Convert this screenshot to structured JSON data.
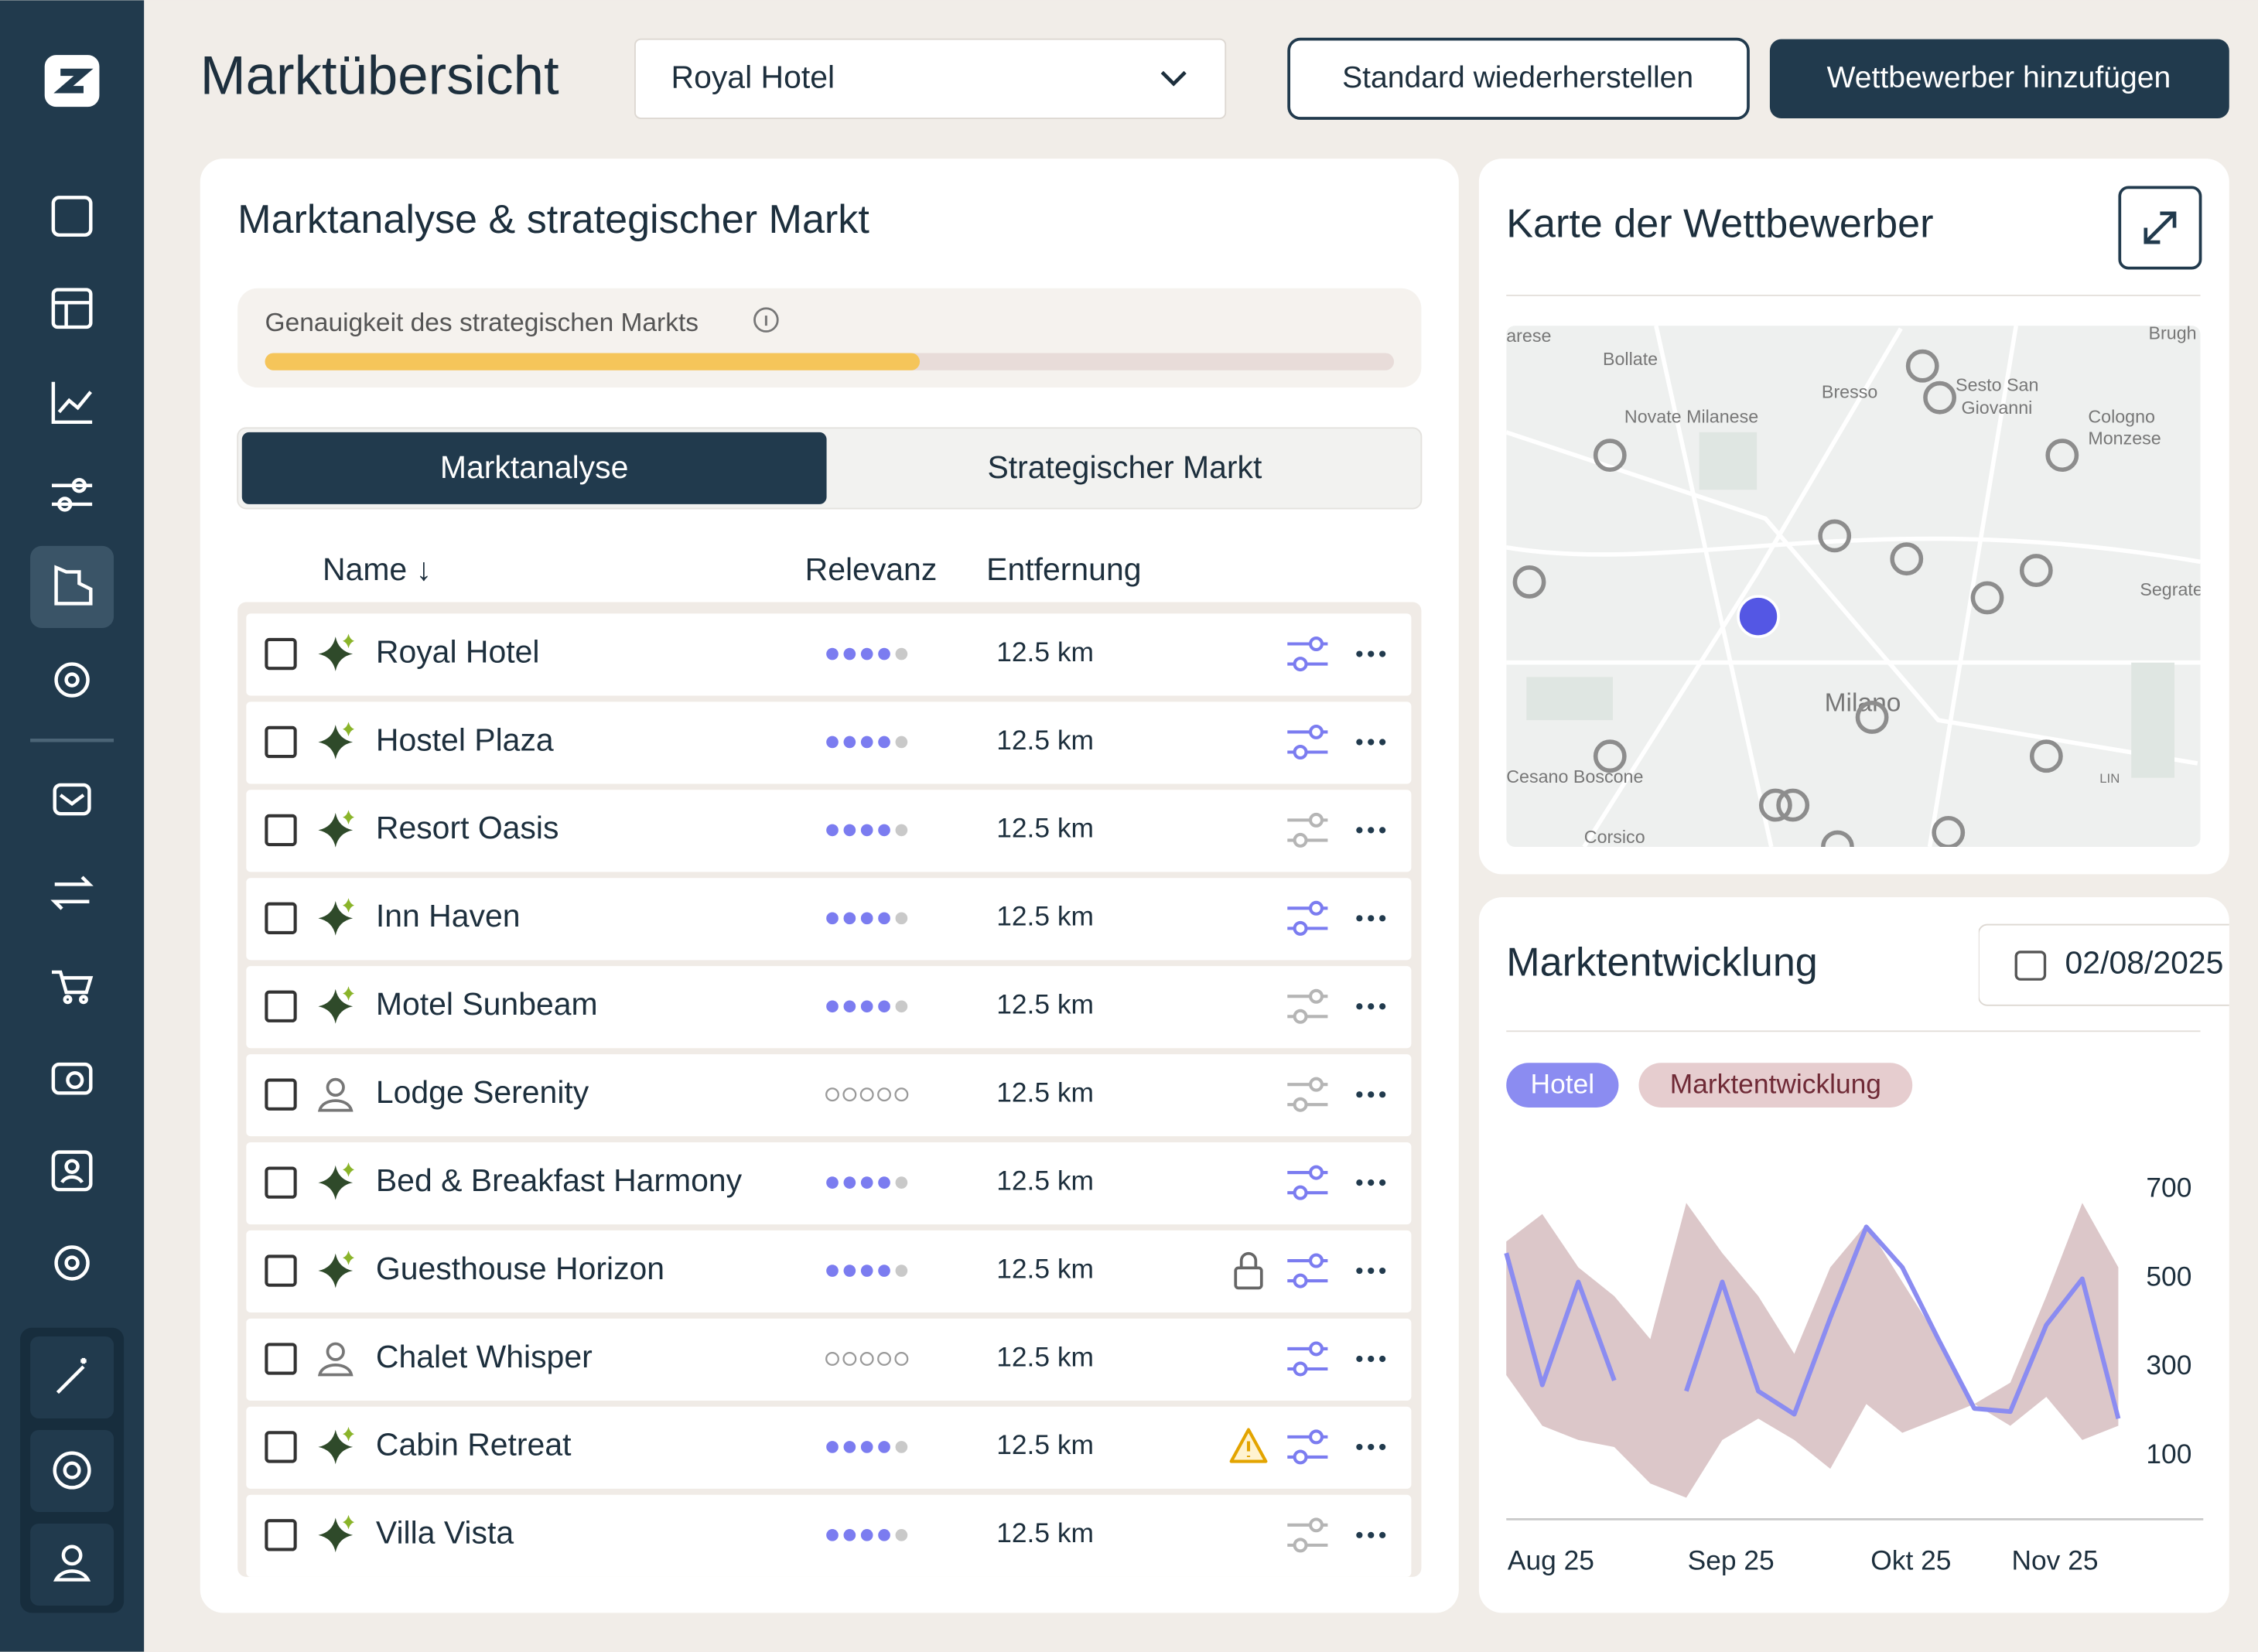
{
  "header": {
    "title": "Marktübersicht",
    "hotel_select": "Royal Hotel",
    "reset_button": "Standard wiederherstellen",
    "add_button": "Wettbewerber hinzufügen"
  },
  "market_panel": {
    "title": "Marktanalyse & strategischer Markt",
    "accuracy_label": "Genauigkeit des strategischen Markts",
    "accuracy_percent": 58,
    "tabs": [
      "Marktanalyse",
      "Strategischer Markt"
    ],
    "active_tab": 0,
    "columns": [
      "Name ↓",
      "Relevanz",
      "Entfernung"
    ],
    "rows": [
      {
        "name": "Royal Hotel",
        "kind": "ai",
        "relevance": 4,
        "distance": "12.5 km",
        "tuned": true
      },
      {
        "name": "Hostel Plaza",
        "kind": "ai",
        "relevance": 4,
        "distance": "12.5 km",
        "tuned": true
      },
      {
        "name": "Resort Oasis",
        "kind": "ai",
        "relevance": 4,
        "distance": "12.5 km",
        "tuned": false
      },
      {
        "name": "Inn Haven",
        "kind": "ai",
        "relevance": 4,
        "distance": "12.5 km",
        "tuned": true
      },
      {
        "name": "Motel Sunbeam",
        "kind": "ai",
        "relevance": 4,
        "distance": "12.5 km",
        "tuned": false
      },
      {
        "name": "Lodge Serenity",
        "kind": "user",
        "relevance": 0,
        "distance": "12.5 km",
        "tuned": false
      },
      {
        "name": "Bed & Breakfast Harmony",
        "kind": "ai",
        "relevance": 4,
        "distance": "12.5 km",
        "tuned": true
      },
      {
        "name": "Guesthouse Horizon",
        "kind": "ai",
        "relevance": 4,
        "distance": "12.5 km",
        "tuned": true,
        "flag": "lock"
      },
      {
        "name": "Chalet Whisper",
        "kind": "user",
        "relevance": 0,
        "distance": "12.5 km",
        "tuned": true
      },
      {
        "name": "Cabin Retreat",
        "kind": "ai",
        "relevance": 4,
        "distance": "12.5 km",
        "tuned": true,
        "flag": "warning"
      },
      {
        "name": "Villa Vista",
        "kind": "ai",
        "relevance": 4,
        "distance": "12.5 km",
        "tuned": false
      }
    ]
  },
  "map_panel": {
    "title": "Karte der Wettbewerber",
    "places": [
      "arese",
      "Bollate",
      "Bresso",
      "Sesto San",
      "Giovanni",
      "Novate Milanese",
      "Cologno",
      "Monzese",
      "Brugh",
      "Segrate",
      "Milano",
      "Cesano Boscone",
      "Corsico",
      "LIN"
    ]
  },
  "trend_panel": {
    "title": "Marktentwicklung",
    "date": "02/08/2025",
    "chart": {
      "type": "line",
      "x": [
        null,
        "Aug 25",
        null,
        null,
        null,
        null,
        "Sep 25",
        null,
        null,
        null,
        null,
        "Okt 25",
        null,
        null,
        null,
        "Nov 25",
        null,
        null
      ],
      "ylim": [
        -40,
        740
      ],
      "yticks": [
        100,
        300,
        500,
        700
      ],
      "series": [
        {
          "name": "Hotel",
          "color": "#8b8cf1",
          "values": [
            557,
            260,
            492,
            270,
            null,
            246,
            492,
            246,
            194,
            411,
            616,
            525,
            363,
            207,
            200,
            395,
            499,
            184
          ]
        },
        {
          "name": "Marktentwicklung",
          "color": "#dcc7c9",
          "upper": [
            583,
            645,
            525,
            460,
            363,
            670,
            557,
            460,
            330,
            525,
            622,
            492,
            363,
            217,
            265,
            460,
            670,
            525
          ],
          "lower": [
            282,
            168,
            136,
            120,
            38,
            6,
            136,
            184,
            136,
            71,
            217,
            152,
            184,
            217,
            168,
            233,
            136,
            168
          ]
        }
      ]
    }
  }
}
